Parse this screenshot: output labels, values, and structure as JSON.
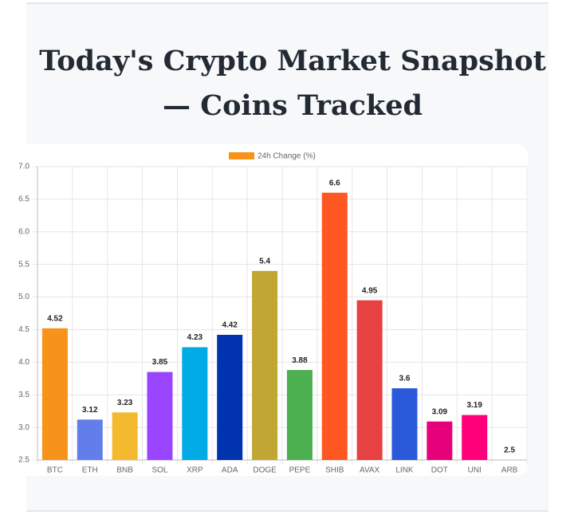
{
  "chart_data": {
    "type": "bar",
    "title": "Today's Crypto Market Snapshot — Coins Tracked",
    "series_name": "24h Change (%)",
    "categories": [
      "BTC",
      "ETH",
      "BNB",
      "SOL",
      "XRP",
      "ADA",
      "DOGE",
      "PEPE",
      "SHIB",
      "AVAX",
      "LINK",
      "DOT",
      "UNI",
      "ARB"
    ],
    "values": [
      4.52,
      3.12,
      3.23,
      3.85,
      4.23,
      4.42,
      5.4,
      3.88,
      6.6,
      4.95,
      3.6,
      3.09,
      3.19,
      2.5
    ],
    "colors": [
      "#f7931a",
      "#627eea",
      "#f3ba2f",
      "#9945ff",
      "#00aae4",
      "#0033ad",
      "#c2a633",
      "#4caf50",
      "#ff5722",
      "#e84142",
      "#2a5ada",
      "#e6007a",
      "#ff007a",
      "#28a0f0"
    ],
    "ylim": [
      2.5,
      7
    ],
    "yticks": [
      2.5,
      {
        "value": 3,
        "label": "3.0"
      },
      3.5,
      {
        "value": 4,
        "label": "4.0"
      },
      4.5,
      {
        "value": 5,
        "label": "5.0"
      },
      5.5,
      {
        "value": 6,
        "label": "6.0"
      },
      6.5,
      {
        "value": 7,
        "label": "7.0"
      }
    ],
    "grid": true
  }
}
